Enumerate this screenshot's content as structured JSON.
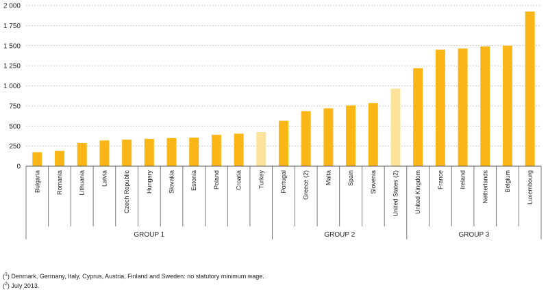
{
  "chart_data": {
    "type": "bar",
    "ylim": [
      0,
      2000
    ],
    "yticks": [
      0,
      250,
      500,
      750,
      1000,
      1250,
      1500,
      1750,
      2000
    ],
    "ytick_labels": [
      "0",
      "250",
      "500",
      "750",
      "1 000",
      "1 250",
      "1 500",
      "1 750",
      "2 000"
    ],
    "grid": true,
    "categories": [
      "Bulgaria",
      "Romania",
      "Lithuania",
      "Latvia",
      "Czech Republic",
      "Hungary",
      "Slovakia",
      "Estonia",
      "Poland",
      "Croatia",
      "Turkey",
      "Portugal",
      "Greece (2)",
      "Malta",
      "Spain",
      "Slovenia",
      "United States (2)",
      "United Kingdom",
      "France",
      "Ireland",
      "Netherlands",
      "Belgium",
      "Luxembourg"
    ],
    "values": [
      174,
      190,
      290,
      320,
      330,
      340,
      350,
      355,
      390,
      405,
      425,
      565,
      685,
      720,
      755,
      785,
      965,
      1220,
      1450,
      1465,
      1490,
      1500,
      1925
    ],
    "highlight": [
      false,
      false,
      false,
      false,
      false,
      false,
      false,
      false,
      false,
      false,
      true,
      false,
      false,
      false,
      false,
      false,
      true,
      false,
      false,
      false,
      false,
      false,
      false
    ],
    "colors": {
      "bar": "#FAB516",
      "highlight": "#FCE29A",
      "grid": "#bbbbbb",
      "axis": "#555555"
    },
    "groups": [
      {
        "label": "GROUP 1",
        "start": 0,
        "end": 10
      },
      {
        "label": "GROUP 2",
        "start": 11,
        "end": 16
      },
      {
        "label": "GROUP 3",
        "start": 17,
        "end": 22
      }
    ]
  },
  "footnotes": {
    "note1_marker": "1",
    "note1_text": "Denmark, Germany, Italy, Cyprus, Austria, Finland and Sweden: no statutory minimum wage.",
    "note2_marker": "2",
    "note2_text": "July 2013."
  }
}
